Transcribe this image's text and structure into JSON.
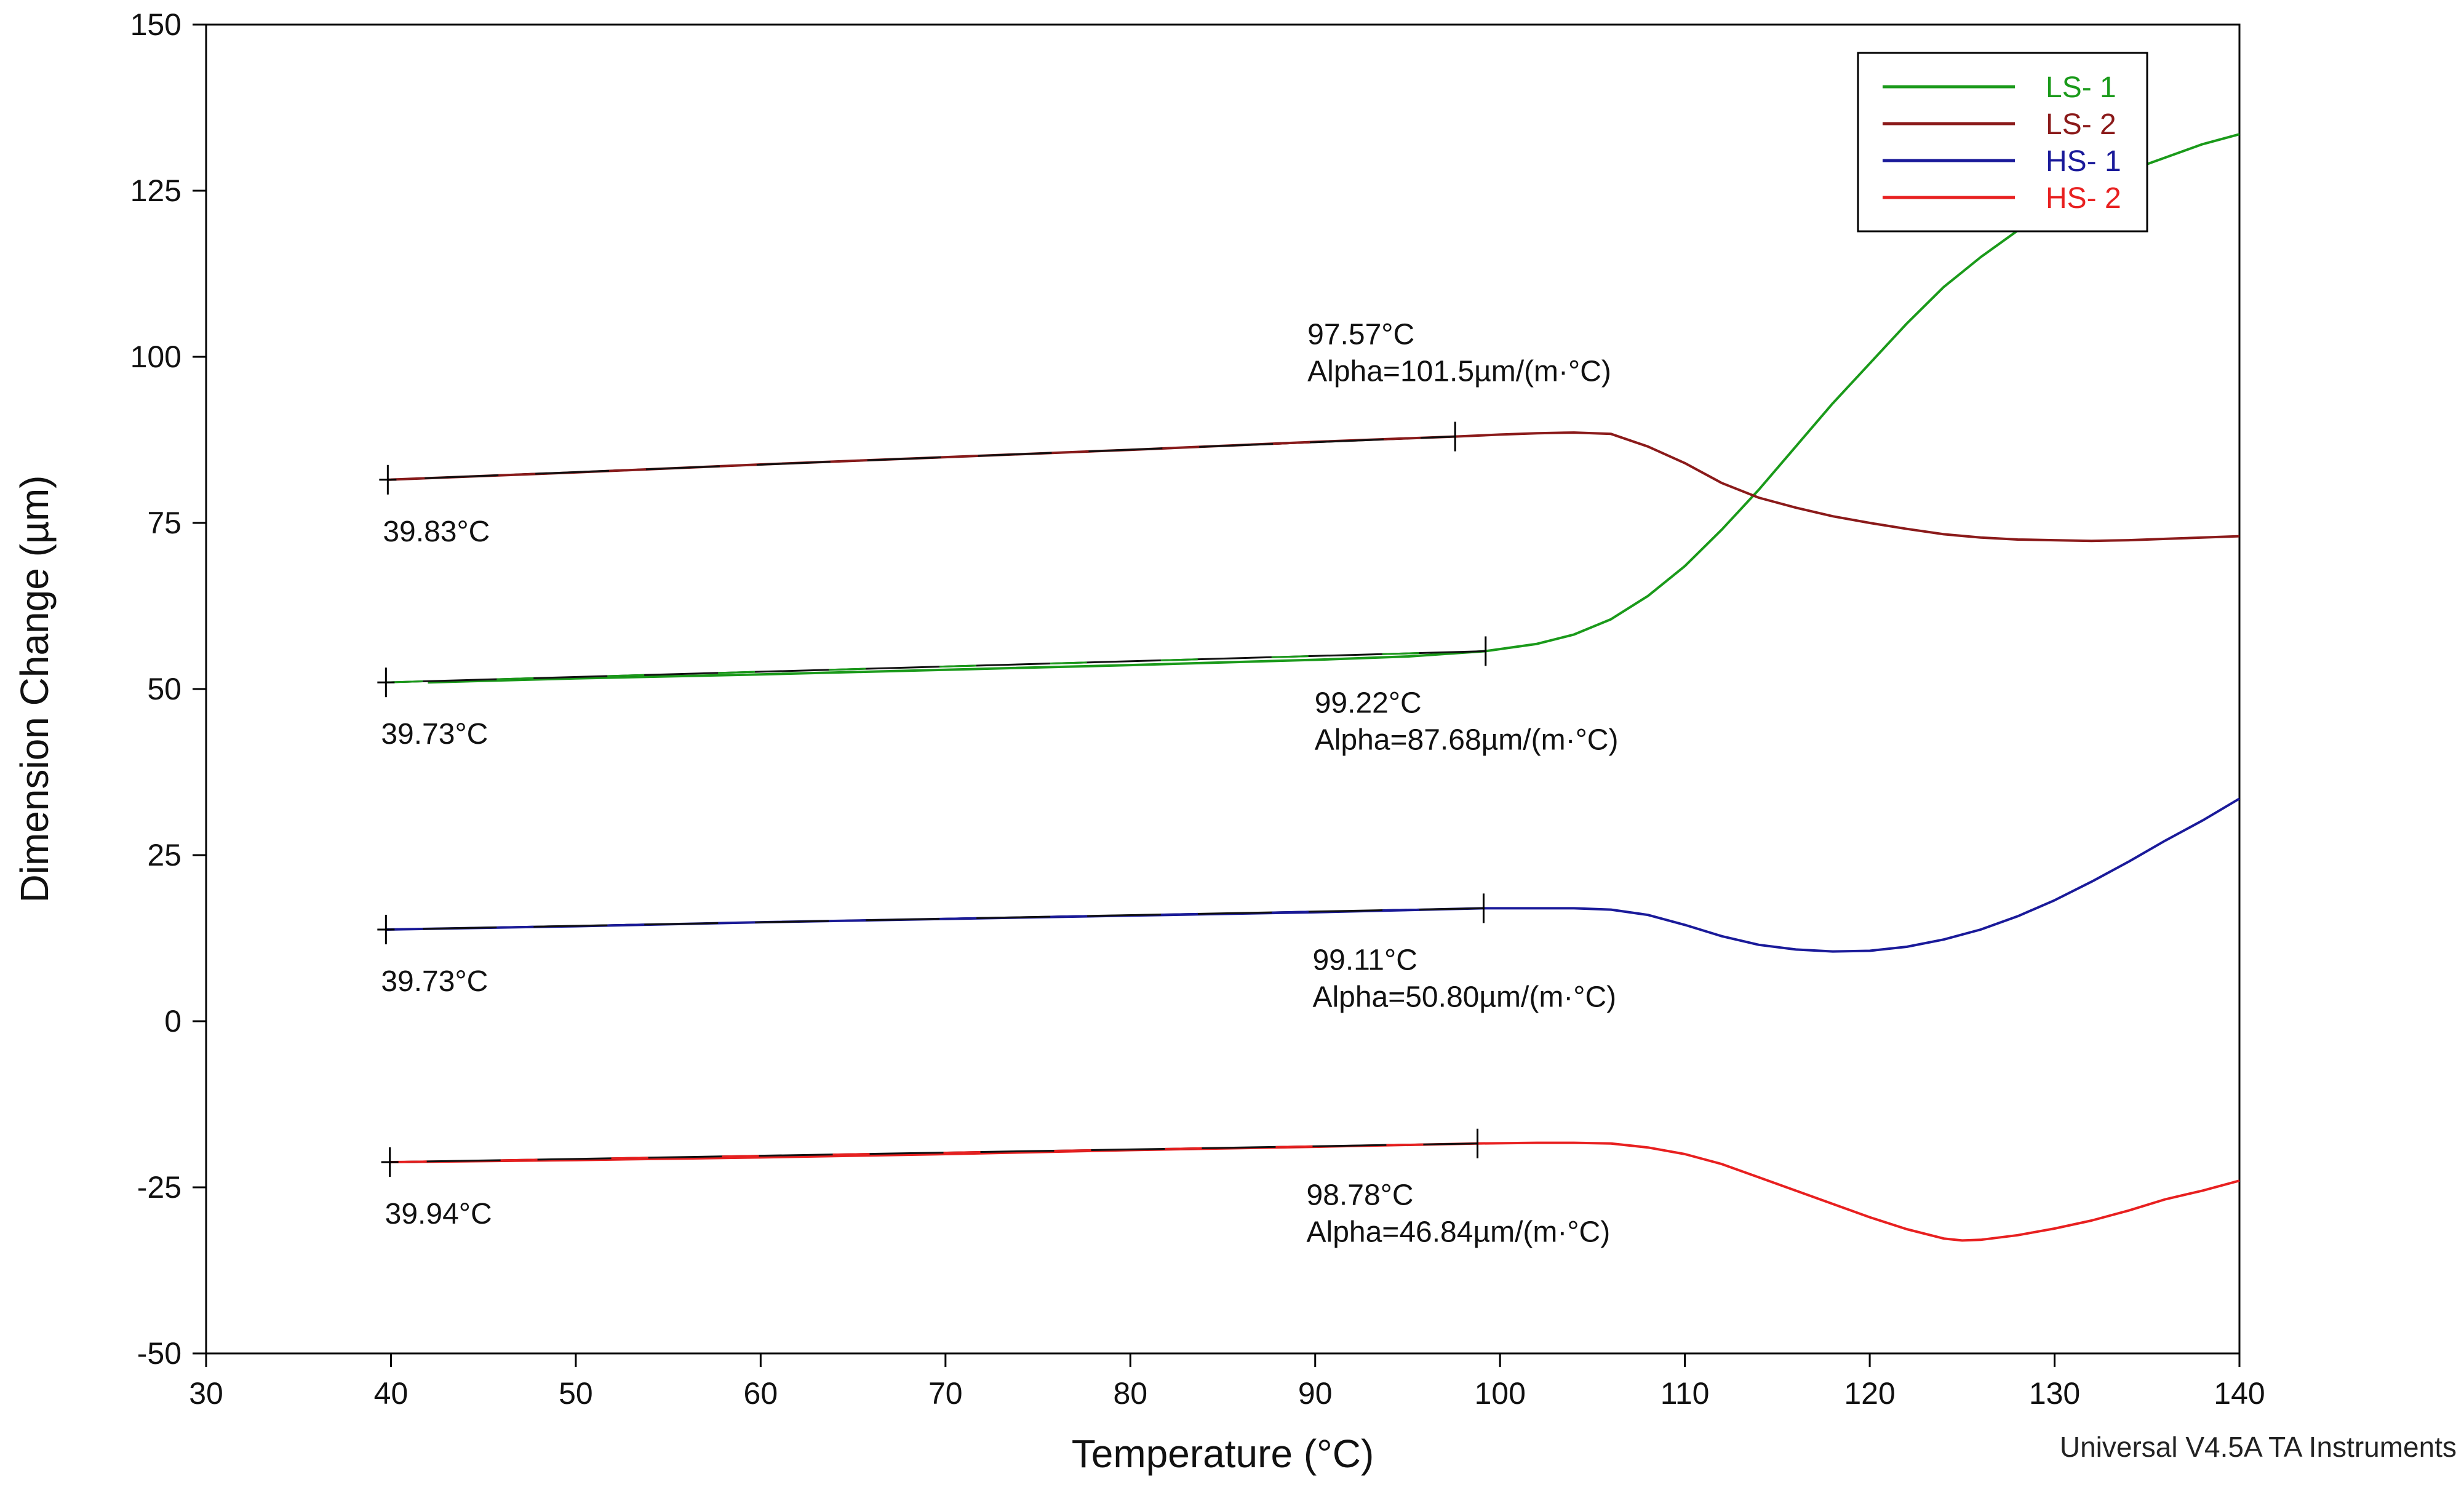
{
  "chart_data": {
    "type": "line",
    "title": "",
    "xlabel": "Temperature (°C)",
    "ylabel": "Dimension Change (µm)",
    "xlim": [
      30,
      140
    ],
    "ylim": [
      -50,
      150
    ],
    "xticks": [
      30,
      40,
      50,
      60,
      70,
      80,
      90,
      100,
      110,
      120,
      130,
      140
    ],
    "yticks": [
      -50,
      -25,
      0,
      25,
      50,
      75,
      100,
      125,
      150
    ],
    "grid": false,
    "legend_position": "top-right",
    "series": [
      {
        "name": "LS- 1",
        "color": "#1a9a1a",
        "x": [
          42,
          50,
          60,
          70,
          80,
          90,
          95,
          99.22,
          102,
          104,
          106,
          108,
          110,
          112,
          114,
          116,
          118,
          120,
          122,
          124,
          126,
          128,
          130,
          132,
          134,
          136,
          138,
          140
        ],
        "y": [
          51,
          51.6,
          52.2,
          52.9,
          53.6,
          54.4,
          54.9,
          55.7,
          56.8,
          58.2,
          60.5,
          64,
          68.5,
          74,
          80,
          86.5,
          93,
          99,
          105,
          110.5,
          115,
          119,
          122.5,
          125.5,
          128,
          130,
          132,
          133.5
        ]
      },
      {
        "name": "LS- 2",
        "color": "#8b1a1a",
        "x": [
          39.83,
          50,
          60,
          70,
          80,
          90,
          97.57,
          100,
          102,
          104,
          106,
          108,
          110,
          112,
          114,
          116,
          118,
          120,
          122,
          124,
          126,
          128,
          130,
          132,
          134,
          136,
          138,
          140
        ],
        "y": [
          81.5,
          82.6,
          83.8,
          84.9,
          86,
          87.2,
          88,
          88.3,
          88.5,
          88.6,
          88.4,
          86.5,
          84,
          81,
          78.8,
          77.3,
          76,
          75,
          74.1,
          73.3,
          72.8,
          72.5,
          72.4,
          72.3,
          72.4,
          72.6,
          72.8,
          73
        ]
      },
      {
        "name": "HS- 1",
        "color": "#1a1a9a",
        "x": [
          39.73,
          50,
          60,
          70,
          80,
          90,
          99.11,
          102,
          104,
          106,
          108,
          110,
          112,
          114,
          116,
          118,
          120,
          122,
          124,
          126,
          128,
          130,
          132,
          134,
          136,
          138,
          140
        ],
        "y": [
          13.8,
          14.3,
          14.9,
          15.4,
          15.9,
          16.4,
          17,
          17,
          17,
          16.8,
          16,
          14.5,
          12.8,
          11.5,
          10.8,
          10.5,
          10.6,
          11.2,
          12.3,
          13.8,
          15.8,
          18.2,
          21,
          24,
          27.2,
          30.2,
          33.5
        ]
      },
      {
        "name": "HS- 2",
        "color": "#e82020",
        "x": [
          39.94,
          50,
          60,
          70,
          80,
          90,
          98.78,
          102,
          104,
          106,
          108,
          110,
          112,
          114,
          116,
          118,
          120,
          122,
          124,
          125,
          126,
          128,
          130,
          132,
          134,
          136,
          138,
          140
        ],
        "y": [
          -21.2,
          -20.9,
          -20.5,
          -20,
          -19.4,
          -18.9,
          -18.4,
          -18.3,
          -18.3,
          -18.4,
          -19,
          -20,
          -21.5,
          -23.5,
          -25.5,
          -27.5,
          -29.5,
          -31.3,
          -32.7,
          -33,
          -32.9,
          -32.2,
          -31.2,
          -30,
          -28.5,
          -26.8,
          -25.5,
          -24
        ]
      }
    ],
    "fits": [
      {
        "x": [
          39.83,
          97.57
        ],
        "y": [
          81.5,
          88
        ],
        "color": "#8b1a1a"
      },
      {
        "x": [
          39.73,
          99.22
        ],
        "y": [
          51,
          55.7
        ],
        "color": "#1a9a1a"
      },
      {
        "x": [
          39.73,
          99.11
        ],
        "y": [
          13.8,
          17
        ],
        "color": "#1a1a9a"
      },
      {
        "x": [
          39.94,
          98.78
        ],
        "y": [
          -21.2,
          -18.4
        ],
        "color": "#e82020"
      }
    ],
    "annotations": [
      {
        "x": 39.83,
        "y": 81.5,
        "label": "39.83°C",
        "sublabel": ""
      },
      {
        "x": 97.57,
        "y": 88,
        "label": "97.57°C",
        "sublabel": "Alpha=101.5µm/(m·°C)"
      },
      {
        "x": 39.73,
        "y": 51,
        "label": "39.73°C",
        "sublabel": ""
      },
      {
        "x": 99.22,
        "y": 55.7,
        "label": "99.22°C",
        "sublabel": "Alpha=87.68µm/(m·°C)"
      },
      {
        "x": 39.73,
        "y": 13.8,
        "label": "39.73°C",
        "sublabel": ""
      },
      {
        "x": 99.11,
        "y": 17,
        "label": "99.11°C",
        "sublabel": "Alpha=50.80µm/(m·°C)"
      },
      {
        "x": 39.94,
        "y": -21.2,
        "label": "39.94°C",
        "sublabel": ""
      },
      {
        "x": 98.78,
        "y": -18.4,
        "label": "98.78°C",
        "sublabel": "Alpha=46.84µm/(m·°C)"
      }
    ]
  },
  "watermark": "Universal V4.5A TA Instruments"
}
